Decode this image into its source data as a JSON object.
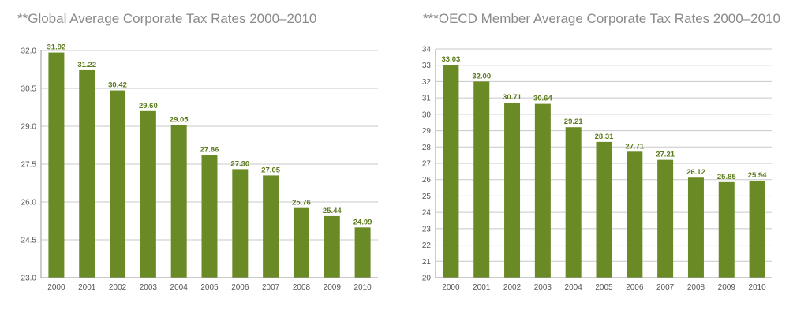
{
  "colors": {
    "bar": "#6a8a25",
    "label": "#5a7a1c",
    "grid": "#c8c8c8",
    "axis": "#9a9a9a",
    "tick": "#555555",
    "title": "#8a8a8a"
  },
  "chart_data": [
    {
      "type": "bar",
      "title": "**Global Average Corporate Tax Rates 2000–2010",
      "categories": [
        "2000",
        "2001",
        "2002",
        "2003",
        "2004",
        "2005",
        "2006",
        "2007",
        "2008",
        "2009",
        "2010"
      ],
      "values": [
        31.92,
        31.22,
        30.42,
        29.6,
        29.05,
        27.86,
        27.3,
        27.05,
        25.76,
        25.44,
        24.99
      ],
      "value_labels": [
        "31.92",
        "31.22",
        "30.42",
        "29.60",
        "29.05",
        "27.86",
        "27.30",
        "27.05",
        "25.76",
        "25.44",
        "24.99"
      ],
      "y_ticks": [
        "23.0",
        "24.5",
        "26.0",
        "27.5",
        "29.0",
        "30.5",
        "32.0"
      ],
      "ylim": [
        23.0,
        32.0
      ],
      "grid": true,
      "xlabel": "",
      "ylabel": ""
    },
    {
      "type": "bar",
      "title": "***OECD Member Average Corporate Tax Rates 2000–2010",
      "categories": [
        "2000",
        "2001",
        "2002",
        "2003",
        "2004",
        "2005",
        "2006",
        "2007",
        "2008",
        "2009",
        "2010"
      ],
      "values": [
        33.03,
        32.0,
        30.71,
        30.64,
        29.21,
        28.31,
        27.71,
        27.21,
        26.12,
        25.85,
        25.94
      ],
      "value_labels": [
        "33.03",
        "32.00",
        "30.71",
        "30.64",
        "29.21",
        "28.31",
        "27.71",
        "27.21",
        "26.12",
        "25.85",
        "25.94"
      ],
      "y_ticks": [
        "20",
        "21",
        "22",
        "23",
        "24",
        "25",
        "26",
        "27",
        "28",
        "29",
        "30",
        "31",
        "32",
        "33",
        "34"
      ],
      "ylim": [
        20,
        34
      ],
      "grid": true,
      "xlabel": "",
      "ylabel": ""
    }
  ]
}
